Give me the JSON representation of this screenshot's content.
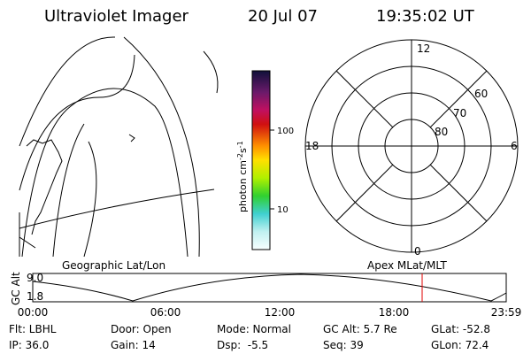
{
  "header": {
    "title": "Ultraviolet Imager",
    "date": "20 Jul 07",
    "time": "19:35:02 UT"
  },
  "colorbar": {
    "label": {
      "base": "photon cm",
      "exp1": "-2",
      "unit2": "s",
      "exp2": "-1"
    },
    "ticks": [
      "100",
      "10"
    ]
  },
  "polar": {
    "labels": {
      "top": "12",
      "left": "18",
      "right": "6",
      "bottom": "0"
    },
    "rings": [
      "60",
      "70",
      "80"
    ]
  },
  "orbit": {
    "left_label": "Geographic Lat/Lon",
    "right_label": "Apex MLat/MLT",
    "axis_label": "GC Alt",
    "yticks": [
      "9.0",
      "1.8"
    ],
    "xticks": [
      "00:00",
      "06:00",
      "12:00",
      "18:00",
      "23:59"
    ]
  },
  "footer": {
    "rows": [
      [
        "Flt: LBHL",
        "Door: Open",
        "Mode: Normal",
        "GC Alt: 5.7 Re",
        "GLat: -52.8"
      ],
      [
        "IP: 36.0",
        "Gain: 14",
        "Dsp:  -5.5",
        "Seq: 39",
        "GLon: 72.4"
      ]
    ]
  }
}
